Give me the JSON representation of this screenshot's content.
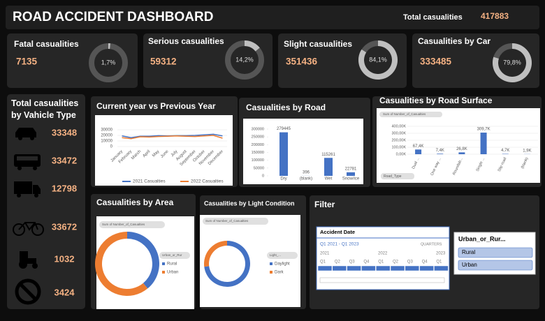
{
  "header": {
    "title": "ROAD ACCIDENT DASHBOARD",
    "total_label": "Total casualities",
    "total_value": 417883
  },
  "kpis": [
    {
      "label": "Fatal casualities",
      "value": 7135,
      "share": 1.7,
      "share_label": "1,7%"
    },
    {
      "label": "Serious casualities",
      "value": 59312,
      "share": 14.2,
      "share_label": "14,2%"
    },
    {
      "label": "Slight casualities",
      "value": 351436,
      "share": 84.1,
      "share_label": "84,1%"
    },
    {
      "label": "Casualities by Car",
      "value": 333485,
      "share": 79.8,
      "share_label": "79,8%"
    }
  ],
  "vehicle_panel": {
    "title": "Total casualities by Vahicle Type",
    "values": [
      33348,
      33472,
      12798,
      33672,
      1032,
      3424
    ]
  },
  "chart_data": [
    {
      "type": "line",
      "title": "Current year vs Previous Year",
      "categories": [
        "January",
        "February",
        "March",
        "April",
        "May",
        "June",
        "July",
        "August",
        "September",
        "October",
        "November",
        "December"
      ],
      "series": [
        {
          "name": "2021 Casualties",
          "color": "#4472c4",
          "values": [
            19000,
            16000,
            18500,
            18500,
            19500,
            19000,
            19500,
            19500,
            20000,
            21000,
            22000,
            19000
          ]
        },
        {
          "name": "2022 Casualties",
          "color": "#ed7d31",
          "values": [
            16000,
            14000,
            17500,
            17000,
            18000,
            18500,
            19000,
            18500,
            18000,
            19000,
            20000,
            15000
          ]
        }
      ],
      "ylim": [
        0,
        30000
      ],
      "yticks": [
        0,
        10000,
        20000,
        30000
      ]
    },
    {
      "type": "bar",
      "title": "Casualities by Road",
      "color": "#4472c4",
      "categories": [
        "Dry",
        "(blank)",
        "Wet",
        "Snow/ice"
      ],
      "values": [
        279445,
        396,
        115261,
        22781
      ],
      "ylim": [
        0,
        300000
      ],
      "yticks": [
        0,
        50000,
        100000,
        150000,
        200000,
        250000,
        300000
      ]
    },
    {
      "type": "bar",
      "title": "Casualities by Road Surface",
      "color": "#4472c4",
      "field_button": "Sum of Number_of_Casualties",
      "axis_field": "Road_Type",
      "categories": [
        "Dual ...",
        "One way ...",
        "Roundab...",
        "Single ...",
        "Slip road",
        "(blank)"
      ],
      "values": [
        67400,
        7400,
        26800,
        309700,
        4700,
        1900
      ],
      "value_labels": [
        "67,4K",
        "7,4K",
        "26,8K",
        "309,7K",
        "4,7K",
        "1,9K"
      ],
      "ylim": [
        0,
        400000
      ],
      "yticks": [
        {
          "value": 0,
          "label": "0,00K"
        },
        {
          "value": 100000,
          "label": "100,00K"
        },
        {
          "value": 200000,
          "label": "200,00K"
        },
        {
          "value": 300000,
          "label": "300,00K"
        },
        {
          "value": 400000,
          "label": "400,00K"
        }
      ]
    },
    {
      "type": "pie",
      "title": "Casualities by Area",
      "field_button": "Sum of Number_of_Casualties",
      "legend_title": "Urban_or_Rur",
      "categories": [
        "Rural",
        "Urban"
      ],
      "values": [
        163000,
        255000
      ],
      "colors": [
        "#4472c4",
        "#ed7d31"
      ]
    },
    {
      "type": "pie",
      "title": "Casualities by Light Condition",
      "field_button": "Sum of Number_of_Casualties",
      "legend_title": "Light_...",
      "categories": [
        "Daylight",
        "Dark"
      ],
      "values": [
        305000,
        113000
      ],
      "colors": [
        "#4472c4",
        "#ed7d31"
      ]
    }
  ],
  "filter": {
    "title": "Filter",
    "timeline": {
      "title": "Accident Date",
      "range": "Q1 2021 - Q1 2023",
      "level": "QUARTERS",
      "years": [
        "2021",
        "2022",
        "2023"
      ],
      "quarters": [
        "Q1",
        "Q2",
        "Q3",
        "Q4",
        "Q1",
        "Q2",
        "Q3",
        "Q4",
        "Q1"
      ]
    },
    "slicer": {
      "title": "Urban_or_Rur...",
      "items": [
        "Rural",
        "Urban"
      ]
    }
  }
}
